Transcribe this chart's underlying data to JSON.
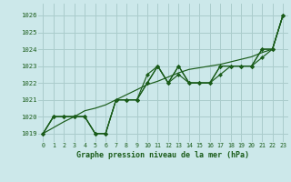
{
  "title": "Graphe pression niveau de la mer (hPa)",
  "bg_color": "#cce8ea",
  "grid_color": "#aacccc",
  "line_color": "#1a5c1a",
  "xlim": [
    -0.5,
    23.5
  ],
  "ylim": [
    1018.5,
    1026.7
  ],
  "yticks": [
    1019,
    1020,
    1021,
    1022,
    1023,
    1024,
    1025,
    1026
  ],
  "xticks": [
    0,
    1,
    2,
    3,
    4,
    5,
    6,
    7,
    8,
    9,
    10,
    11,
    12,
    13,
    14,
    15,
    16,
    17,
    18,
    19,
    20,
    21,
    22,
    23
  ],
  "series_main": [
    1019,
    1020,
    1020,
    1020,
    1020,
    1019,
    1019,
    1021,
    1021,
    1021,
    1022,
    1023,
    1022,
    1023,
    1022,
    1022,
    1022,
    1023,
    1023,
    1023,
    1023,
    1024,
    1024,
    1026
  ],
  "series2": [
    1019,
    1020,
    1020,
    1020,
    1020,
    1019,
    1019,
    1021,
    1021,
    1021,
    1022,
    1023,
    1022,
    1023,
    1022,
    1022,
    1022,
    1023,
    1023,
    1023,
    1023,
    1024,
    1024,
    1026
  ],
  "series3": [
    1019,
    1020,
    1020,
    1020,
    1020,
    1019,
    1019,
    1021,
    1021,
    1021,
    1022.5,
    1023,
    1022,
    1022.5,
    1022,
    1022,
    1022,
    1022.5,
    1023,
    1023,
    1023,
    1023.5,
    1024,
    1026
  ],
  "series_trend": [
    1019.0,
    1019.35,
    1019.7,
    1020.0,
    1020.35,
    1020.5,
    1020.7,
    1021.0,
    1021.3,
    1021.6,
    1021.9,
    1022.1,
    1022.35,
    1022.6,
    1022.8,
    1022.9,
    1023.0,
    1023.1,
    1023.25,
    1023.4,
    1023.55,
    1023.8,
    1024.0,
    1026.0
  ]
}
